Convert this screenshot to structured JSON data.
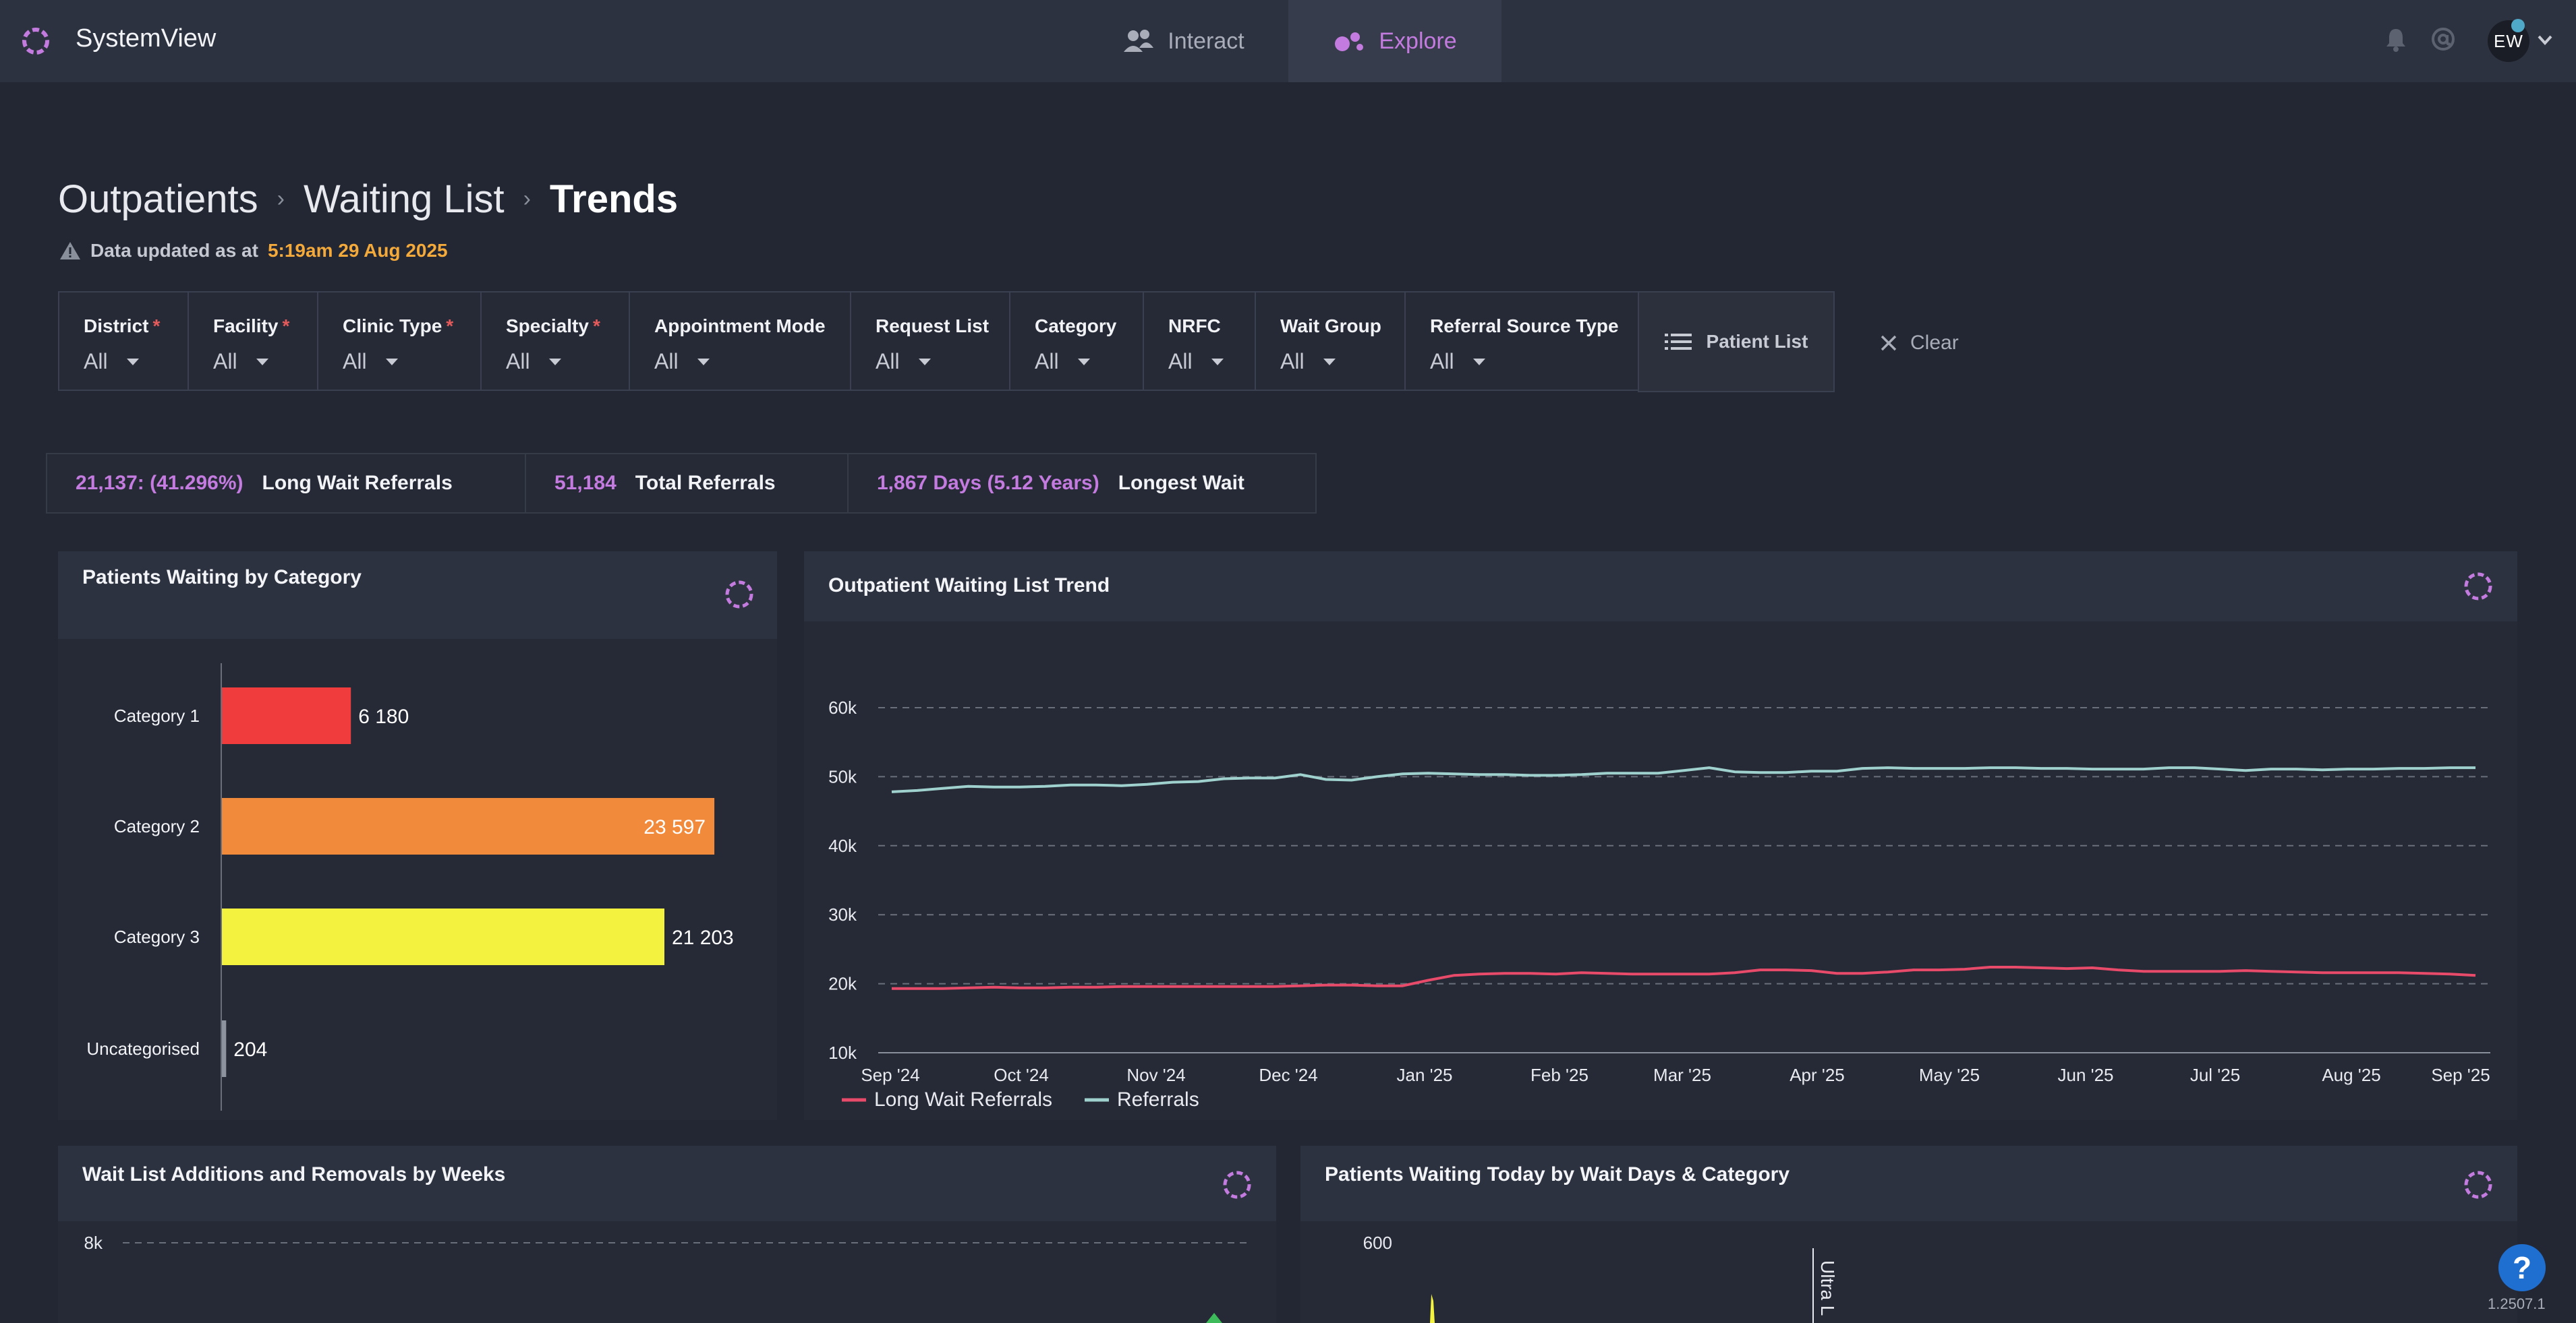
{
  "app": {
    "title": "SystemView"
  },
  "nav": {
    "tabs": [
      {
        "label": "Interact",
        "active": false
      },
      {
        "label": "Explore",
        "active": true
      }
    ]
  },
  "user": {
    "initials": "EW"
  },
  "breadcrumb": {
    "items": [
      "Outpatients",
      "Waiting List"
    ],
    "current": "Trends"
  },
  "updated": {
    "prefix": "Data updated as at",
    "timestamp": "5:19am 29 Aug 2025"
  },
  "filters": [
    {
      "label": "District",
      "required": true,
      "value": "All"
    },
    {
      "label": "Facility",
      "required": true,
      "value": "All"
    },
    {
      "label": "Clinic Type",
      "required": true,
      "value": "All"
    },
    {
      "label": "Specialty",
      "required": true,
      "value": "All"
    },
    {
      "label": "Appointment Mode",
      "required": false,
      "value": "All"
    },
    {
      "label": "Request List",
      "required": false,
      "value": "All"
    },
    {
      "label": "Category",
      "required": false,
      "value": "All"
    },
    {
      "label": "NRFC",
      "required": false,
      "value": "All"
    },
    {
      "label": "Wait Group",
      "required": false,
      "value": "All"
    },
    {
      "label": "Referral Source Type",
      "required": false,
      "value": "All"
    }
  ],
  "actions": {
    "patient_list": "Patient List",
    "clear": "Clear"
  },
  "kpis": [
    {
      "value": "21,137: (41.296%)",
      "label": "Long Wait Referrals"
    },
    {
      "value": "51,184",
      "label": "Total Referrals"
    },
    {
      "value": "1,867 Days (5.12 Years)",
      "label": "Longest Wait"
    }
  ],
  "colors": {
    "accent": "#c47bdf",
    "cat1": "#f03c3c",
    "cat2": "#f28a3c",
    "cat3": "#f3f23f",
    "uncat": "#8e93a0",
    "long_wait_line": "#e84a6a",
    "referrals_line": "#9fd2cf",
    "timestamp": "#f4a93b"
  },
  "panels": {
    "category": {
      "title": "Patients Waiting by Category"
    },
    "trend": {
      "title": "Outpatient Waiting List Trend"
    },
    "additions": {
      "title": "Wait List Additions and Removals by Weeks",
      "y_top_tick": "8k"
    },
    "wait_days": {
      "title": "Patients Waiting Today by Wait Days & Category",
      "y_top_tick": "600",
      "marker_label": "Ultra L"
    }
  },
  "chart_data": [
    {
      "type": "bar",
      "orientation": "horizontal",
      "title": "Patients Waiting by Category",
      "categories": [
        "Category 1",
        "Category 2",
        "Category 3",
        "Uncategorised"
      ],
      "values": [
        6180,
        23597,
        21203,
        204
      ],
      "value_labels": [
        "6 180",
        "23 597",
        "21 203",
        "204"
      ]
    },
    {
      "type": "line",
      "title": "Outpatient Waiting List Trend",
      "x_ticks": [
        "Sep '24",
        "Oct '24",
        "Nov '24",
        "Dec '24",
        "Jan '25",
        "Feb '25",
        "Mar '25",
        "Apr '25",
        "May '25",
        "Jun '25",
        "Jul '25",
        "Aug '25",
        "Sep '25"
      ],
      "y_ticks": [
        "10k",
        "20k",
        "30k",
        "40k",
        "50k",
        "60k"
      ],
      "ylim": [
        10000,
        60000
      ],
      "grid": true,
      "legend": "bottom-left",
      "series": [
        {
          "name": "Long Wait Referrals",
          "values": [
            19300,
            19300,
            19300,
            19400,
            19500,
            19400,
            19400,
            19500,
            19500,
            19600,
            19600,
            19600,
            19600,
            19600,
            19600,
            19600,
            19700,
            19800,
            19800,
            19700,
            19700,
            20500,
            21200,
            21400,
            21500,
            21500,
            21400,
            21600,
            21500,
            21400,
            21400,
            21400,
            21400,
            21600,
            22000,
            22000,
            21900,
            21500,
            21500,
            21700,
            22000,
            22000,
            22100,
            22400,
            22400,
            22300,
            22200,
            22300,
            22000,
            21800,
            21800,
            21800,
            21800,
            21900,
            21800,
            21700,
            21600,
            21600,
            21600,
            21600,
            21500,
            21400,
            21200
          ]
        },
        {
          "name": "Referrals",
          "values": [
            47800,
            48000,
            48300,
            48600,
            48500,
            48500,
            48600,
            48800,
            48800,
            48700,
            48900,
            49200,
            49300,
            49700,
            49800,
            49800,
            50300,
            49600,
            49500,
            50000,
            50400,
            50500,
            50400,
            50300,
            50300,
            50200,
            50200,
            50300,
            50500,
            50500,
            50500,
            50900,
            51300,
            50700,
            50600,
            50600,
            50800,
            50800,
            51200,
            51300,
            51200,
            51200,
            51200,
            51300,
            51300,
            51200,
            51200,
            51100,
            51100,
            51100,
            51300,
            51300,
            51100,
            50900,
            51100,
            51100,
            51000,
            51100,
            51100,
            51200,
            51200,
            51300,
            51300
          ]
        }
      ]
    }
  ],
  "footer": {
    "version": "1.2507.1",
    "help": "?"
  }
}
